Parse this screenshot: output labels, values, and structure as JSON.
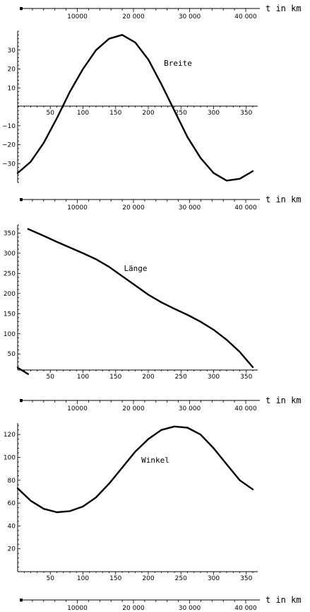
{
  "distance_axis": {
    "label": "t in km",
    "range": [
      0,
      40000
    ],
    "major_ticks": [
      10000,
      20000,
      30000,
      40000
    ],
    "major_tick_labels": [
      "10000",
      "20 000",
      "30 000",
      "40 000"
    ],
    "minor_step": 2000
  },
  "chart_data": [
    {
      "type": "line",
      "curve_label": "Breite",
      "x_range": [
        0,
        360
      ],
      "xticks": [
        50,
        100,
        150,
        200,
        250,
        300,
        350
      ],
      "xtick_labels": [
        "50",
        "100",
        "150",
        "200",
        "250",
        "300",
        "350"
      ],
      "ylim": [
        -40,
        40
      ],
      "yticks": [
        -30,
        -20,
        -10,
        10,
        20,
        30
      ],
      "ytick_labels": [
        "−30",
        "−20",
        "−10",
        "10",
        "20",
        "30"
      ],
      "x": [
        0,
        20,
        40,
        60,
        80,
        100,
        120,
        140,
        160,
        180,
        200,
        220,
        240,
        260,
        280,
        300,
        320,
        340,
        360
      ],
      "y": [
        -35,
        -29,
        -19,
        -6,
        8,
        20,
        30,
        36,
        38,
        34,
        25,
        12,
        -2,
        -16,
        -27,
        -35,
        -39,
        -38,
        -34
      ]
    },
    {
      "type": "line",
      "curve_label": "Länge",
      "x_range": [
        0,
        360
      ],
      "xticks": [
        50,
        100,
        150,
        200,
        250,
        300,
        350
      ],
      "xtick_labels": [
        "50",
        "100",
        "150",
        "200",
        "250",
        "300",
        "350"
      ],
      "ylim": [
        10,
        370
      ],
      "yticks": [
        50,
        100,
        150,
        200,
        250,
        300,
        350
      ],
      "ytick_labels": [
        "50",
        "100",
        "150",
        "200",
        "250",
        "300",
        "350"
      ],
      "segments": [
        {
          "x": [
            0,
            16
          ],
          "y": [
            16,
            0
          ]
        },
        {
          "x": [
            16,
            40,
            60,
            80,
            100,
            120,
            140,
            160,
            180,
            200,
            220,
            240,
            260,
            280,
            300,
            320,
            340,
            360
          ],
          "y": [
            360,
            343,
            328,
            314,
            300,
            285,
            266,
            243,
            220,
            197,
            178,
            162,
            147,
            130,
            110,
            85,
            55,
            17
          ]
        }
      ]
    },
    {
      "type": "line",
      "curve_label": "Winkel",
      "x_range": [
        0,
        360
      ],
      "xticks": [
        50,
        100,
        150,
        200,
        250,
        300,
        350
      ],
      "xtick_labels": [
        "50",
        "100",
        "150",
        "200",
        "250",
        "300",
        "350"
      ],
      "ylim": [
        0,
        130
      ],
      "yticks": [
        20,
        40,
        60,
        80,
        100,
        120
      ],
      "ytick_labels": [
        "20",
        "40",
        "60",
        "80",
        "100",
        "120"
      ],
      "x": [
        0,
        20,
        40,
        60,
        80,
        100,
        120,
        140,
        160,
        180,
        200,
        220,
        240,
        260,
        280,
        300,
        320,
        340,
        360
      ],
      "y": [
        73,
        62,
        55,
        52,
        53,
        57,
        65,
        77,
        91,
        105,
        116,
        124,
        127,
        126,
        120,
        108,
        94,
        80,
        72
      ]
    }
  ]
}
